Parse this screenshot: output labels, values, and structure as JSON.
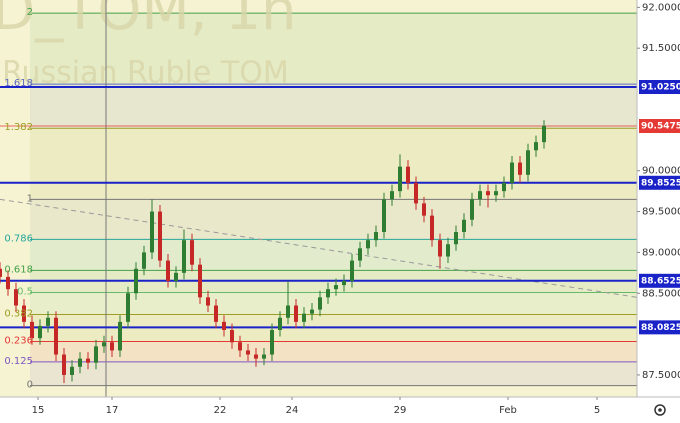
{
  "chart_data": {
    "type": "candlestick",
    "watermark": "D_TOM, 1h",
    "subtitle": "Russian Ruble TOM",
    "x": [
      0,
      2,
      4,
      6,
      8,
      10,
      12,
      14,
      16,
      18,
      20,
      22,
      24,
      26,
      28,
      30,
      32,
      34,
      36,
      38,
      40,
      42,
      44,
      46,
      48,
      50,
      52,
      54,
      56,
      58,
      60,
      62,
      64,
      66,
      68,
      70,
      72,
      74,
      76,
      78,
      80,
      82,
      84,
      86,
      88,
      90,
      92,
      94,
      96,
      98,
      100,
      102,
      104,
      106,
      108,
      110,
      112,
      114,
      116,
      118,
      120,
      122,
      124,
      126,
      128,
      130,
      132,
      134,
      136
    ],
    "open": [
      88.8,
      88.7,
      88.55,
      88.35,
      88.15,
      87.95,
      88.1,
      88.2,
      87.75,
      87.5,
      87.6,
      87.7,
      87.65,
      87.85,
      87.9,
      87.8,
      88.15,
      88.5,
      88.8,
      89.0,
      89.5,
      88.9,
      88.65,
      88.75,
      89.15,
      88.85,
      88.45,
      88.35,
      88.15,
      88.05,
      87.9,
      87.8,
      87.75,
      87.7,
      87.75,
      88.05,
      88.2,
      88.35,
      88.15,
      88.25,
      88.3,
      88.45,
      88.55,
      88.6,
      88.65,
      88.9,
      89.05,
      89.15,
      89.25,
      89.65,
      89.75,
      90.05,
      89.85,
      89.6,
      89.45,
      89.15,
      88.95,
      89.1,
      89.25,
      89.4,
      89.65,
      89.75,
      89.7,
      89.75,
      89.85,
      90.1,
      89.95,
      90.25,
      90.35
    ],
    "high": [
      88.88,
      88.78,
      88.63,
      88.43,
      88.23,
      88.18,
      88.28,
      88.28,
      87.83,
      87.68,
      87.78,
      87.78,
      87.93,
      87.98,
      87.98,
      88.23,
      88.58,
      88.88,
      89.08,
      89.65,
      89.58,
      88.98,
      88.83,
      89.28,
      89.23,
      88.93,
      88.53,
      88.43,
      88.23,
      88.13,
      87.98,
      87.88,
      87.83,
      87.83,
      88.13,
      88.28,
      88.65,
      88.43,
      88.33,
      88.38,
      88.53,
      88.63,
      88.68,
      88.73,
      88.98,
      89.13,
      89.23,
      89.33,
      89.73,
      89.83,
      90.2,
      90.13,
      89.93,
      89.68,
      89.53,
      89.23,
      89.18,
      89.33,
      89.48,
      89.73,
      89.83,
      89.83,
      89.83,
      89.93,
      90.18,
      90.18,
      90.33,
      90.43,
      90.62
    ],
    "low": [
      88.62,
      88.47,
      88.27,
      88.07,
      87.87,
      87.87,
      88.02,
      87.67,
      87.4,
      87.42,
      87.52,
      87.57,
      87.57,
      87.77,
      87.72,
      87.72,
      88.07,
      88.42,
      88.72,
      88.92,
      88.82,
      88.57,
      88.57,
      88.67,
      88.77,
      88.37,
      88.27,
      88.07,
      87.97,
      87.82,
      87.72,
      87.67,
      87.6,
      87.62,
      87.67,
      87.97,
      88.12,
      88.07,
      88.07,
      88.17,
      88.22,
      88.37,
      88.47,
      88.52,
      88.57,
      88.82,
      88.97,
      89.07,
      89.17,
      89.57,
      89.67,
      89.77,
      89.52,
      89.37,
      89.07,
      88.8,
      88.87,
      89.02,
      89.17,
      89.32,
      89.57,
      89.55,
      89.62,
      89.67,
      89.77,
      89.85,
      89.87,
      90.17,
      90.27
    ],
    "close": [
      88.7,
      88.55,
      88.35,
      88.15,
      87.95,
      88.1,
      88.2,
      87.75,
      87.5,
      87.6,
      87.7,
      87.65,
      87.85,
      87.9,
      87.8,
      88.15,
      88.5,
      88.8,
      89.0,
      89.5,
      88.9,
      88.65,
      88.75,
      89.15,
      88.85,
      88.45,
      88.35,
      88.15,
      88.05,
      87.9,
      87.8,
      87.75,
      87.7,
      87.75,
      88.05,
      88.2,
      88.35,
      88.15,
      88.25,
      88.3,
      88.45,
      88.55,
      88.6,
      88.65,
      88.9,
      89.05,
      89.15,
      89.25,
      89.65,
      89.75,
      90.05,
      89.85,
      89.6,
      89.45,
      89.15,
      88.95,
      89.1,
      89.25,
      89.4,
      89.65,
      89.75,
      89.7,
      89.75,
      89.85,
      90.1,
      89.95,
      90.25,
      90.35,
      90.55
    ],
    "up_color": "#2e7d32",
    "down_color": "#c62828",
    "xlim": [
      0,
      159.25
    ],
    "ylim": [
      87.23,
      92.09
    ],
    "xticks": [
      {
        "value": 9.5,
        "label": "15"
      },
      {
        "value": 28,
        "label": "17"
      },
      {
        "value": 55,
        "label": "22"
      },
      {
        "value": 73,
        "label": "24"
      },
      {
        "value": 100,
        "label": "29"
      },
      {
        "value": 127,
        "label": "Feb"
      },
      {
        "value": 149.25,
        "label": "5"
      }
    ],
    "yticks": [
      {
        "value": 92,
        "label": "92.0000"
      },
      {
        "value": 91.5,
        "label": "91.5000"
      },
      {
        "value": 90,
        "label": "90.0000"
      },
      {
        "value": 89.5,
        "label": "89.5000"
      },
      {
        "value": 89,
        "label": "89.0000"
      },
      {
        "value": 88.5,
        "label": "88.5000"
      },
      {
        "value": 87.5,
        "label": "87.5000"
      }
    ],
    "fib_levels": [
      {
        "label": "2",
        "price": 91.93,
        "color": "#43a047"
      },
      {
        "label": "1.618",
        "price": 91.06,
        "color": "#5c6bc0"
      },
      {
        "label": "1.382",
        "price": 90.52,
        "color": "#9e9d24"
      },
      {
        "label": "1",
        "price": 89.65,
        "color": "#757575"
      },
      {
        "label": "0.786",
        "price": 89.16,
        "color": "#26a69a"
      },
      {
        "label": "0.618",
        "price": 88.78,
        "color": "#43a047"
      },
      {
        "label": "0.5",
        "price": 88.51,
        "color": "#66bb6a"
      },
      {
        "label": "0.382",
        "price": 88.24,
        "color": "#9e9d24"
      },
      {
        "label": "0.236",
        "price": 87.91,
        "color": "#e53935"
      },
      {
        "label": "0.125",
        "price": 87.66,
        "color": "#7e57c2"
      },
      {
        "label": "0",
        "price": 87.37,
        "color": "#757575"
      }
    ],
    "price_lines": [
      {
        "value": 91.025,
        "label": "91.0250",
        "color": "#1a23c8"
      },
      {
        "value": 90.5475,
        "label": "90.5475",
        "color": "#e53935"
      },
      {
        "value": 89.8525,
        "label": "89.8525",
        "color": "#1a23c8"
      },
      {
        "value": 88.6525,
        "label": "88.6525",
        "color": "#1a23c8"
      },
      {
        "value": 88.0825,
        "label": "88.0825",
        "color": "#1a23c8"
      }
    ],
    "trendline": {
      "x": [
        0,
        159.25
      ],
      "y": [
        89.65,
        88.45
      ]
    },
    "vertical_line": 26.5
  }
}
